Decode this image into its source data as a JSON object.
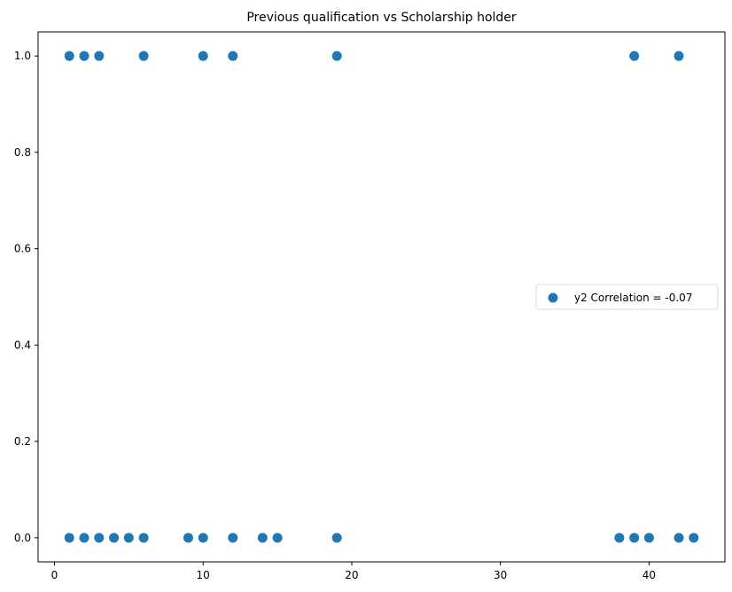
{
  "chart_data": {
    "type": "scatter",
    "title": "Previous qualification vs Scholarship holder",
    "xlabel": "",
    "ylabel": "",
    "xlim": [
      -1.1,
      45.1
    ],
    "ylim": [
      -0.05,
      1.05
    ],
    "x_ticks": [
      0,
      10,
      20,
      30,
      40
    ],
    "x_tick_labels": [
      "0",
      "10",
      "20",
      "30",
      "40"
    ],
    "y_ticks": [
      0.0,
      0.2,
      0.4,
      0.6,
      0.8,
      1.0
    ],
    "y_tick_labels": [
      "0.0",
      "0.2",
      "0.4",
      "0.6",
      "0.8",
      "1.0"
    ],
    "grid": false,
    "legend_position": "center-right",
    "colors": {
      "series": "#1f77b4",
      "axis": "#000000",
      "legend_border": "#d9d9d9"
    },
    "series": [
      {
        "name": "y2 Correlation = -0.07",
        "points": [
          {
            "x": 1,
            "y": 1
          },
          {
            "x": 2,
            "y": 1
          },
          {
            "x": 3,
            "y": 1
          },
          {
            "x": 6,
            "y": 1
          },
          {
            "x": 10,
            "y": 1
          },
          {
            "x": 12,
            "y": 1
          },
          {
            "x": 19,
            "y": 1
          },
          {
            "x": 39,
            "y": 1
          },
          {
            "x": 42,
            "y": 1
          },
          {
            "x": 1,
            "y": 0
          },
          {
            "x": 2,
            "y": 0
          },
          {
            "x": 3,
            "y": 0
          },
          {
            "x": 4,
            "y": 0
          },
          {
            "x": 5,
            "y": 0
          },
          {
            "x": 6,
            "y": 0
          },
          {
            "x": 9,
            "y": 0
          },
          {
            "x": 10,
            "y": 0
          },
          {
            "x": 12,
            "y": 0
          },
          {
            "x": 14,
            "y": 0
          },
          {
            "x": 15,
            "y": 0
          },
          {
            "x": 19,
            "y": 0
          },
          {
            "x": 38,
            "y": 0
          },
          {
            "x": 39,
            "y": 0
          },
          {
            "x": 40,
            "y": 0
          },
          {
            "x": 42,
            "y": 0
          },
          {
            "x": 43,
            "y": 0
          }
        ]
      }
    ]
  }
}
